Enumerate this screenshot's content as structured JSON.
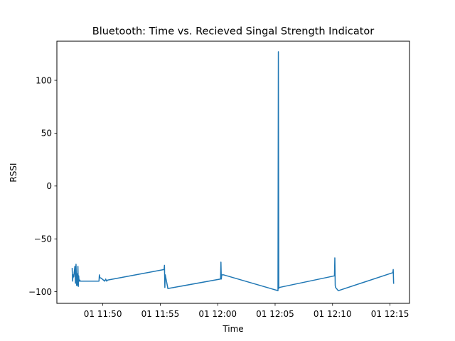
{
  "chart_data": {
    "type": "line",
    "title": "Bluetooth: Time vs. Recieved Singal Strength Indicator",
    "xlabel": "Time",
    "ylabel": "RSSI",
    "line_color": "#1f77b4",
    "grid": false,
    "xlim": [
      "2023-01-01T11:46:00",
      "2023-01-01T12:16:42"
    ],
    "ylim": [
      -111,
      137
    ],
    "x_ticks": [
      {
        "value": "2023-01-01T11:50:00",
        "label": "01 11:50"
      },
      {
        "value": "2023-01-01T11:55:00",
        "label": "01 11:55"
      },
      {
        "value": "2023-01-01T12:00:00",
        "label": "01 12:00"
      },
      {
        "value": "2023-01-01T12:05:00",
        "label": "01 12:05"
      },
      {
        "value": "2023-01-01T12:10:00",
        "label": "01 12:10"
      },
      {
        "value": "2023-01-01T12:15:00",
        "label": "01 12:15"
      }
    ],
    "y_ticks": [
      {
        "value": 100,
        "label": "100"
      },
      {
        "value": 50,
        "label": "50"
      },
      {
        "value": 0,
        "label": "0"
      },
      {
        "value": -50,
        "label": "−50"
      },
      {
        "value": -100,
        "label": "−100"
      }
    ],
    "series": [
      {
        "x": [
          "2023-01-01T11:47:20",
          "2023-01-01T11:47:22",
          "2023-01-01T11:47:25",
          "2023-01-01T11:47:28",
          "2023-01-01T11:47:34",
          "2023-01-01T11:47:37",
          "2023-01-01T11:47:40",
          "2023-01-01T11:47:43",
          "2023-01-01T11:47:46",
          "2023-01-01T11:47:48",
          "2023-01-01T11:47:50",
          "2023-01-01T11:47:52",
          "2023-01-01T11:47:54",
          "2023-01-01T11:47:56",
          "2023-01-01T11:47:58",
          "2023-01-01T11:48:00",
          "2023-01-01T11:48:02",
          "2023-01-01T11:48:04",
          "2023-01-01T11:48:06",
          "2023-01-01T11:48:08",
          "2023-01-01T11:49:40",
          "2023-01-01T11:49:42",
          "2023-01-01T11:49:45",
          "2023-01-01T11:49:50",
          "2023-01-01T11:50:10",
          "2023-01-01T11:50:15",
          "2023-01-01T11:50:20",
          "2023-01-01T11:50:25",
          "2023-01-01T11:55:20",
          "2023-01-01T11:55:22",
          "2023-01-01T11:55:24",
          "2023-01-01T11:55:26",
          "2023-01-01T11:55:40",
          "2023-01-01T12:00:15",
          "2023-01-01T12:00:17",
          "2023-01-01T12:00:19",
          "2023-01-01T12:00:21",
          "2023-01-01T12:00:30",
          "2023-01-01T12:05:15",
          "2023-01-01T12:05:17",
          "2023-01-01T12:05:19",
          "2023-01-01T12:05:21",
          "2023-01-01T12:10:10",
          "2023-01-01T12:10:12",
          "2023-01-01T12:10:14",
          "2023-01-01T12:10:16",
          "2023-01-01T12:10:30",
          "2023-01-01T12:15:15",
          "2023-01-01T12:15:17",
          "2023-01-01T12:15:19"
        ],
        "y": [
          -78,
          -90,
          -84,
          -86,
          -76,
          -92,
          -74,
          -94,
          -83,
          -94,
          -76,
          -95,
          -85,
          -90,
          -90,
          -89,
          -90,
          -90,
          -90,
          -90,
          -90,
          -84,
          -87,
          -87,
          -90,
          -88,
          -90,
          -89,
          -79,
          -75,
          -96,
          -84,
          -97,
          -88,
          -72,
          -88,
          -84,
          -84,
          -99,
          127,
          -97,
          -96,
          -85,
          -68,
          -94,
          -96,
          -99,
          -82,
          -79,
          -92
        ]
      }
    ]
  }
}
